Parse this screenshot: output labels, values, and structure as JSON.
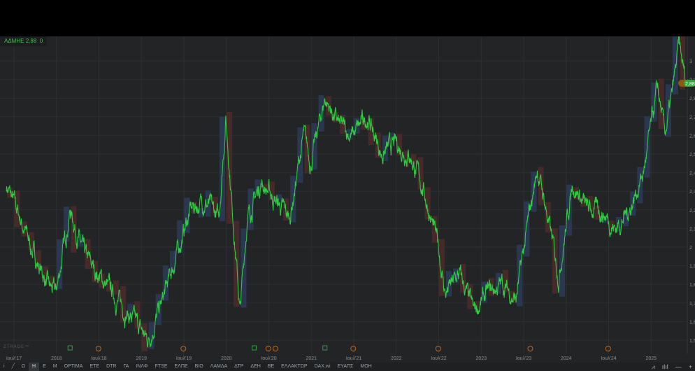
{
  "legend": {
    "symbol": "ΑΔΜΗΕ",
    "price": "2,88",
    "change": "0"
  },
  "watermark": "ZTRADE™",
  "price_tag": "2,88",
  "price_tag_prev": "2,",
  "toolbar": {
    "items": [
      "Ω",
      "Η",
      "Ε",
      "Μ",
      "OPTIMA",
      "ΕΤΕ",
      "DTR",
      "ΓΑ",
      "ΙΝΛΦ",
      "FTSE",
      "ΕΛΠΕ",
      "ΒΙΟ",
      "ΛΑΜΔΑ",
      "ΔΤΡ",
      "ΔΕΗ",
      "ΒΕ",
      "ΕΛΛΑΚΤΩΡ",
      "DAX.wi",
      "ΕΥΑΠΣ",
      "ΜΟΗ"
    ],
    "active": "Η",
    "icons": [
      "info-icon",
      "pencil-icon"
    ],
    "right_icons": [
      "line-chart-icon",
      "bar-chart-icon",
      "zoom-out-icon",
      "zoom-in-icon"
    ]
  },
  "colors": {
    "line": "#2ecc40",
    "up_candle": "#2c3a55",
    "down_candle": "#4a2a2a",
    "background": "#222426",
    "dividend": "#c0651a",
    "earnings": "#2e9e3e"
  },
  "chart_data": {
    "type": "line",
    "title": "",
    "ylim": [
      1.45,
      3.1
    ],
    "y_ticks": [
      "3",
      "2,9",
      "2,8",
      "2,7",
      "2,6",
      "2,5",
      "2,4",
      "2,3",
      "2,2",
      "2,1",
      "2",
      "1,9",
      "1,8",
      "1,7",
      "1,6",
      "1,5"
    ],
    "x_ticks": [
      "Ιουλ'17",
      "2018",
      "Ιουλ'18",
      "2019",
      "Ιουλ'19",
      "2020",
      "Ιουλ'20",
      "2021",
      "Ιουλ'21",
      "2022",
      "Ιουλ'22",
      "2023",
      "Ιουλ'23",
      "2024",
      "Ιουλ'24",
      "2025"
    ],
    "grid": true,
    "series": [
      {
        "points": [
          [
            "2017-06",
            2.33
          ],
          [
            "2017-08",
            2.15
          ],
          [
            "2017-10",
            1.95
          ],
          [
            "2017-12",
            1.78
          ],
          [
            "2018-01",
            1.75
          ],
          [
            "2018-03",
            2.2
          ],
          [
            "2018-05",
            1.95
          ],
          [
            "2018-07",
            1.85
          ],
          [
            "2018-09",
            1.75
          ],
          [
            "2018-11",
            1.65
          ],
          [
            "2019-01",
            1.55
          ],
          [
            "2019-02",
            1.5
          ],
          [
            "2019-04",
            1.7
          ],
          [
            "2019-06",
            1.95
          ],
          [
            "2019-08",
            2.2
          ],
          [
            "2019-10",
            2.25
          ],
          [
            "2019-12",
            2.15
          ],
          [
            "2020-01",
            2.7
          ],
          [
            "2020-03",
            1.65
          ],
          [
            "2020-04",
            2.15
          ],
          [
            "2020-06",
            2.35
          ],
          [
            "2020-08",
            2.25
          ],
          [
            "2020-10",
            2.15
          ],
          [
            "2020-12",
            2.6
          ],
          [
            "2021-01",
            2.45
          ],
          [
            "2021-03",
            2.8
          ],
          [
            "2021-05",
            2.65
          ],
          [
            "2021-07",
            2.6
          ],
          [
            "2021-09",
            2.7
          ],
          [
            "2021-11",
            2.5
          ],
          [
            "2022-01",
            2.55
          ],
          [
            "2022-03",
            2.5
          ],
          [
            "2022-05",
            2.3
          ],
          [
            "2022-07",
            2.0
          ],
          [
            "2022-08",
            1.75
          ],
          [
            "2022-10",
            1.85
          ],
          [
            "2022-12",
            1.65
          ],
          [
            "2023-02",
            1.75
          ],
          [
            "2023-04",
            1.8
          ],
          [
            "2023-06",
            1.72
          ],
          [
            "2023-08",
            2.2
          ],
          [
            "2023-09",
            2.42
          ],
          [
            "2023-10",
            2.25
          ],
          [
            "2023-12",
            1.85
          ],
          [
            "2024-02",
            2.35
          ],
          [
            "2024-04",
            2.2
          ],
          [
            "2024-06",
            2.2
          ],
          [
            "2024-08",
            2.1
          ],
          [
            "2024-10",
            2.2
          ],
          [
            "2024-12",
            2.4
          ],
          [
            "2025-02",
            2.85
          ],
          [
            "2025-03",
            2.6
          ],
          [
            "2025-04",
            2.8
          ],
          [
            "2025-05",
            3.08
          ],
          [
            "2025-06",
            2.88
          ]
        ]
      }
    ],
    "events": {
      "earnings": [
        "2018-03",
        "2020-05",
        "2021-03"
      ],
      "dividends": [
        "2018-07",
        "2019-07",
        "2020-07",
        "2020-08",
        "2021-07",
        "2022-07",
        "2023-08",
        "2024-07"
      ]
    },
    "last_price": 2.88
  }
}
